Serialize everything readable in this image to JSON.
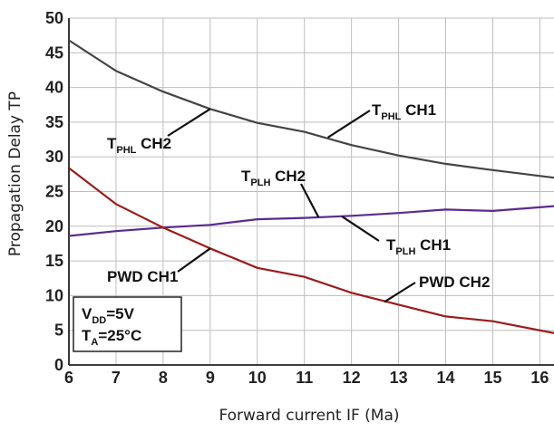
{
  "chart_data": {
    "type": "line",
    "xlabel": "Forward current IF (Ma)",
    "ylabel": "Propagation Delay TP",
    "xlim": [
      6,
      16.3
    ],
    "ylim": [
      0,
      50
    ],
    "xticks": [
      6,
      7,
      8,
      9,
      10,
      11,
      12,
      13,
      14,
      15,
      16
    ],
    "yticks": [
      0,
      5,
      10,
      15,
      20,
      25,
      30,
      35,
      40,
      45,
      50
    ],
    "grid": true,
    "series": [
      {
        "name": "TPHL CH2",
        "color": "#444444",
        "x": [
          6,
          7,
          8,
          9,
          10,
          11,
          12,
          13,
          14,
          15,
          16.3
        ],
        "values": [
          46.8,
          42.4,
          39.4,
          36.9,
          34.9,
          33.6,
          31.7,
          30.2,
          29.0,
          28.1,
          27.0
        ]
      },
      {
        "name": "TPHL CH1",
        "color": "#444444",
        "x": [
          6,
          7,
          8,
          9,
          10,
          11,
          12,
          13,
          14,
          15,
          16.3
        ],
        "values": [
          46.8,
          42.4,
          39.4,
          36.9,
          34.9,
          33.6,
          31.7,
          30.2,
          29.0,
          28.1,
          27.0
        ]
      },
      {
        "name": "TPLH CH2",
        "color": "#5b2a8f",
        "x": [
          6,
          7,
          8,
          9,
          10,
          11,
          12,
          13,
          14,
          15,
          16.3
        ],
        "values": [
          18.6,
          19.3,
          19.8,
          20.2,
          21.0,
          21.2,
          21.5,
          21.9,
          22.4,
          22.2,
          22.9
        ]
      },
      {
        "name": "TPLH CH1",
        "color": "#5b2a8f",
        "x": [
          6,
          7,
          8,
          9,
          10,
          11,
          12,
          13,
          14,
          15,
          16.3
        ],
        "values": [
          18.6,
          19.3,
          19.8,
          20.2,
          21.0,
          21.2,
          21.5,
          21.9,
          22.4,
          22.2,
          22.9
        ]
      },
      {
        "name": "PWD CH1",
        "color": "#9b1b1b",
        "x": [
          6,
          7,
          8,
          9,
          10,
          11,
          12,
          13,
          14,
          15,
          16.3
        ],
        "values": [
          28.4,
          23.2,
          19.8,
          16.8,
          14.0,
          12.7,
          10.4,
          8.7,
          7.0,
          6.3,
          4.6
        ]
      },
      {
        "name": "PWD CH2",
        "color": "#9b1b1b",
        "x": [
          6,
          7,
          8,
          9,
          10,
          11,
          12,
          13,
          14,
          15,
          16.3
        ],
        "values": [
          28.4,
          23.2,
          19.8,
          16.8,
          14.0,
          12.7,
          10.4,
          8.7,
          7.0,
          6.3,
          4.6
        ]
      }
    ],
    "annotations": {
      "tphl_ch1": {
        "main": "T",
        "sub": "PHL",
        "suffix": " CH1"
      },
      "tphl_ch2": {
        "main": "T",
        "sub": "PHL",
        "suffix": " CH2"
      },
      "tplh_ch2": {
        "main": "T",
        "sub": "PLH",
        "suffix": " CH2"
      },
      "tplh_ch1": {
        "main": "T",
        "sub": "PLH",
        "suffix": " CH1"
      },
      "pwd_ch1": "PWD CH1",
      "pwd_ch2": "PWD CH2",
      "conditions": {
        "vdd": {
          "main": "V",
          "sub": "DD",
          "suffix": "=5V"
        },
        "ta": {
          "main": "T",
          "sub": "A",
          "suffix": "=25°C"
        }
      }
    }
  }
}
